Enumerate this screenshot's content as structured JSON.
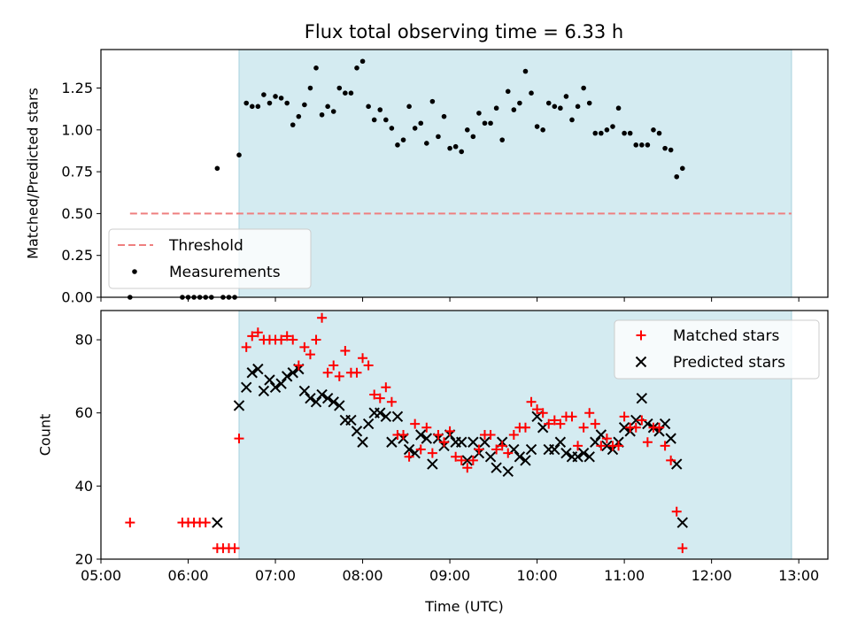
{
  "title": "Flux total observing time = 6.33 h",
  "colors": {
    "obs_window": "#d4ebf1",
    "obs_window_edge": "#a8d2de",
    "threshold": "#ef7f7f",
    "measurements": "#000000",
    "matched": "#ff0000",
    "predicted": "#000000",
    "frame": "#000000"
  },
  "chart_data": [
    {
      "type": "scatter",
      "ylabel": "Matched/Predicted stars",
      "xlabel": "",
      "x_is_time_utc": true,
      "xlim": [
        "05:00",
        "13:20"
      ],
      "ylim": [
        0,
        1.48
      ],
      "yticks": [
        0,
        0.25,
        0.5,
        0.75,
        1.0,
        1.25
      ],
      "ytick_labels": [
        "0.00",
        "0.25",
        "0.50",
        "0.75",
        "1.00",
        "1.25"
      ],
      "observing_window": [
        "06:35",
        "12:55"
      ],
      "threshold": {
        "name": "Threshold",
        "y": 0.5,
        "x_range": [
          "05:20",
          "12:55"
        ]
      },
      "legend": {
        "placement": "lower-left",
        "entries": [
          "Threshold",
          "Measurements"
        ]
      },
      "series": [
        {
          "name": "Measurements",
          "points": [
            [
              "05:20",
              0.0
            ],
            [
              "05:56",
              0.0
            ],
            [
              "06:00",
              0.0
            ],
            [
              "06:04",
              0.0
            ],
            [
              "06:08",
              0.0
            ],
            [
              "06:12",
              0.0
            ],
            [
              "06:16",
              0.0
            ],
            [
              "06:20",
              0.77
            ],
            [
              "06:24",
              0.0
            ],
            [
              "06:28",
              0.0
            ],
            [
              "06:32",
              0.0
            ],
            [
              "06:35",
              0.85
            ],
            [
              "06:40",
              1.16
            ],
            [
              "06:44",
              1.14
            ],
            [
              "06:48",
              1.14
            ],
            [
              "06:52",
              1.21
            ],
            [
              "06:56",
              1.16
            ],
            [
              "07:00",
              1.2
            ],
            [
              "07:04",
              1.19
            ],
            [
              "07:08",
              1.16
            ],
            [
              "07:12",
              1.03
            ],
            [
              "07:16",
              1.08
            ],
            [
              "07:20",
              1.15
            ],
            [
              "07:24",
              1.25
            ],
            [
              "07:28",
              1.37
            ],
            [
              "07:32",
              1.09
            ],
            [
              "07:36",
              1.14
            ],
            [
              "07:40",
              1.11
            ],
            [
              "07:44",
              1.25
            ],
            [
              "07:48",
              1.22
            ],
            [
              "07:52",
              1.22
            ],
            [
              "07:56",
              1.37
            ],
            [
              "08:00",
              1.41
            ],
            [
              "08:04",
              1.14
            ],
            [
              "08:08",
              1.06
            ],
            [
              "08:12",
              1.12
            ],
            [
              "08:16",
              1.06
            ],
            [
              "08:20",
              1.01
            ],
            [
              "08:24",
              0.91
            ],
            [
              "08:28",
              0.94
            ],
            [
              "08:32",
              1.14
            ],
            [
              "08:36",
              1.01
            ],
            [
              "08:40",
              1.04
            ],
            [
              "08:44",
              0.92
            ],
            [
              "08:48",
              1.17
            ],
            [
              "08:52",
              0.96
            ],
            [
              "08:56",
              1.08
            ],
            [
              "09:00",
              0.89
            ],
            [
              "09:04",
              0.9
            ],
            [
              "09:08",
              0.87
            ],
            [
              "09:12",
              1.0
            ],
            [
              "09:16",
              0.96
            ],
            [
              "09:20",
              1.1
            ],
            [
              "09:24",
              1.04
            ],
            [
              "09:28",
              1.04
            ],
            [
              "09:32",
              1.13
            ],
            [
              "09:36",
              0.94
            ],
            [
              "09:40",
              1.23
            ],
            [
              "09:44",
              1.12
            ],
            [
              "09:48",
              1.16
            ],
            [
              "09:52",
              1.35
            ],
            [
              "09:56",
              1.22
            ],
            [
              "10:00",
              1.02
            ],
            [
              "10:04",
              1.0
            ],
            [
              "10:08",
              1.16
            ],
            [
              "10:12",
              1.14
            ],
            [
              "10:16",
              1.13
            ],
            [
              "10:20",
              1.2
            ],
            [
              "10:24",
              1.06
            ],
            [
              "10:28",
              1.14
            ],
            [
              "10:32",
              1.25
            ],
            [
              "10:36",
              1.16
            ],
            [
              "10:40",
              0.98
            ],
            [
              "10:44",
              0.98
            ],
            [
              "10:48",
              1.0
            ],
            [
              "10:52",
              1.02
            ],
            [
              "10:56",
              1.13
            ],
            [
              "11:00",
              0.98
            ],
            [
              "11:04",
              0.98
            ],
            [
              "11:08",
              0.91
            ],
            [
              "11:12",
              0.91
            ],
            [
              "11:16",
              0.91
            ],
            [
              "11:20",
              1.0
            ],
            [
              "11:24",
              0.98
            ],
            [
              "11:28",
              0.89
            ],
            [
              "11:32",
              0.88
            ],
            [
              "11:36",
              0.72
            ],
            [
              "11:40",
              0.77
            ]
          ]
        }
      ]
    },
    {
      "type": "scatter",
      "ylabel": "Count",
      "xlabel": "Time (UTC)",
      "x_is_time_utc": true,
      "xlim": [
        "05:00",
        "13:20"
      ],
      "ylim": [
        20,
        88
      ],
      "yticks": [
        20,
        40,
        60,
        80
      ],
      "xticks": [
        "05:00",
        "06:00",
        "07:00",
        "08:00",
        "09:00",
        "10:00",
        "11:00",
        "12:00",
        "13:00"
      ],
      "observing_window": [
        "06:35",
        "12:55"
      ],
      "legend": {
        "placement": "upper-right",
        "entries": [
          "Matched stars",
          "Predicted stars"
        ]
      },
      "series": [
        {
          "name": "Matched stars",
          "marker": "plus",
          "points": [
            [
              "05:20",
              30
            ],
            [
              "05:56",
              30
            ],
            [
              "06:00",
              30
            ],
            [
              "06:04",
              30
            ],
            [
              "06:08",
              30
            ],
            [
              "06:12",
              30
            ],
            [
              "06:20",
              23
            ],
            [
              "06:24",
              23
            ],
            [
              "06:28",
              23
            ],
            [
              "06:32",
              23
            ],
            [
              "06:35",
              53
            ],
            [
              "06:40",
              78
            ],
            [
              "06:44",
              81
            ],
            [
              "06:48",
              82
            ],
            [
              "06:52",
              80
            ],
            [
              "06:56",
              80
            ],
            [
              "07:00",
              80
            ],
            [
              "07:04",
              80
            ],
            [
              "07:08",
              81
            ],
            [
              "07:12",
              80
            ],
            [
              "07:16",
              73
            ],
            [
              "07:20",
              78
            ],
            [
              "07:24",
              76
            ],
            [
              "07:28",
              80
            ],
            [
              "07:32",
              86
            ],
            [
              "07:36",
              71
            ],
            [
              "07:40",
              73
            ],
            [
              "07:44",
              70
            ],
            [
              "07:48",
              77
            ],
            [
              "07:52",
              71
            ],
            [
              "07:56",
              71
            ],
            [
              "08:00",
              75
            ],
            [
              "08:04",
              73
            ],
            [
              "08:08",
              65
            ],
            [
              "08:12",
              64
            ],
            [
              "08:16",
              67
            ],
            [
              "08:20",
              63
            ],
            [
              "08:24",
              54
            ],
            [
              "08:28",
              54
            ],
            [
              "08:32",
              48
            ],
            [
              "08:36",
              57
            ],
            [
              "08:40",
              50
            ],
            [
              "08:44",
              56
            ],
            [
              "08:48",
              49
            ],
            [
              "08:52",
              54
            ],
            [
              "08:56",
              52
            ],
            [
              "09:00",
              55
            ],
            [
              "09:04",
              48
            ],
            [
              "09:08",
              47
            ],
            [
              "09:12",
              45
            ],
            [
              "09:16",
              47
            ],
            [
              "09:20",
              50
            ],
            [
              "09:24",
              54
            ],
            [
              "09:28",
              54
            ],
            [
              "09:32",
              50
            ],
            [
              "09:36",
              51
            ],
            [
              "09:40",
              49
            ],
            [
              "09:44",
              54
            ],
            [
              "09:48",
              56
            ],
            [
              "09:52",
              56
            ],
            [
              "09:56",
              63
            ],
            [
              "10:00",
              61
            ],
            [
              "10:04",
              60
            ],
            [
              "10:08",
              57
            ],
            [
              "10:12",
              58
            ],
            [
              "10:16",
              57
            ],
            [
              "10:20",
              59
            ],
            [
              "10:24",
              59
            ],
            [
              "10:28",
              51
            ],
            [
              "10:32",
              56
            ],
            [
              "10:36",
              60
            ],
            [
              "10:40",
              57
            ],
            [
              "10:44",
              51
            ],
            [
              "10:48",
              53
            ],
            [
              "10:52",
              51
            ],
            [
              "10:56",
              51
            ],
            [
              "11:00",
              59
            ],
            [
              "11:04",
              56
            ],
            [
              "11:08",
              56
            ],
            [
              "11:12",
              58
            ],
            [
              "11:16",
              52
            ],
            [
              "11:20",
              56
            ],
            [
              "11:24",
              56
            ],
            [
              "11:28",
              51
            ],
            [
              "11:32",
              47
            ],
            [
              "11:36",
              33
            ],
            [
              "11:40",
              23
            ]
          ]
        },
        {
          "name": "Predicted stars",
          "marker": "x",
          "points": [
            [
              "06:20",
              30
            ],
            [
              "06:35",
              62
            ],
            [
              "06:40",
              67
            ],
            [
              "06:44",
              71
            ],
            [
              "06:48",
              72
            ],
            [
              "06:52",
              66
            ],
            [
              "06:56",
              69
            ],
            [
              "07:00",
              67
            ],
            [
              "07:04",
              68
            ],
            [
              "07:08",
              70
            ],
            [
              "07:12",
              71
            ],
            [
              "07:16",
              72
            ],
            [
              "07:20",
              66
            ],
            [
              "07:24",
              64
            ],
            [
              "07:28",
              63
            ],
            [
              "07:32",
              65
            ],
            [
              "07:36",
              64
            ],
            [
              "07:40",
              63
            ],
            [
              "07:44",
              62
            ],
            [
              "07:48",
              58
            ],
            [
              "07:52",
              58
            ],
            [
              "07:56",
              55
            ],
            [
              "08:00",
              52
            ],
            [
              "08:04",
              57
            ],
            [
              "08:08",
              60
            ],
            [
              "08:12",
              60
            ],
            [
              "08:16",
              59
            ],
            [
              "08:20",
              52
            ],
            [
              "08:24",
              59
            ],
            [
              "08:28",
              53
            ],
            [
              "08:32",
              50
            ],
            [
              "08:36",
              49
            ],
            [
              "08:40",
              54
            ],
            [
              "08:44",
              53
            ],
            [
              "08:48",
              46
            ],
            [
              "08:52",
              53
            ],
            [
              "08:56",
              51
            ],
            [
              "09:00",
              54
            ],
            [
              "09:04",
              52
            ],
            [
              "09:08",
              52
            ],
            [
              "09:12",
              47
            ],
            [
              "09:16",
              52
            ],
            [
              "09:20",
              49
            ],
            [
              "09:24",
              52
            ],
            [
              "09:28",
              48
            ],
            [
              "09:32",
              45
            ],
            [
              "09:36",
              52
            ],
            [
              "09:40",
              44
            ],
            [
              "09:44",
              50
            ],
            [
              "09:48",
              48
            ],
            [
              "09:52",
              47
            ],
            [
              "09:56",
              50
            ],
            [
              "10:00",
              59
            ],
            [
              "10:04",
              56
            ],
            [
              "10:08",
              50
            ],
            [
              "10:12",
              50
            ],
            [
              "10:16",
              52
            ],
            [
              "10:20",
              49
            ],
            [
              "10:24",
              48
            ],
            [
              "10:28",
              48
            ],
            [
              "10:32",
              49
            ],
            [
              "10:36",
              48
            ],
            [
              "10:40",
              52
            ],
            [
              "10:44",
              54
            ],
            [
              "10:48",
              51
            ],
            [
              "10:52",
              50
            ],
            [
              "10:56",
              52
            ],
            [
              "11:00",
              56
            ],
            [
              "11:04",
              55
            ],
            [
              "11:08",
              58
            ],
            [
              "11:12",
              64
            ],
            [
              "11:16",
              57
            ],
            [
              "11:20",
              56
            ],
            [
              "11:24",
              55
            ],
            [
              "11:28",
              57
            ],
            [
              "11:32",
              53
            ],
            [
              "11:36",
              46
            ],
            [
              "11:40",
              30
            ]
          ]
        }
      ]
    }
  ]
}
